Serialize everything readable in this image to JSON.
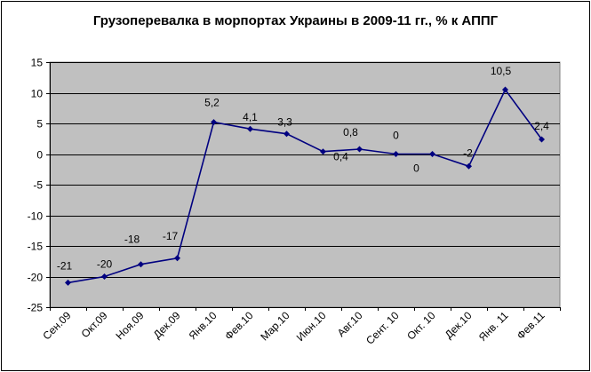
{
  "chart_data": {
    "type": "line",
    "title": "Грузоперевалка в морпортах Украины в 2009-11 гг., % к АППГ",
    "xlabel": "",
    "ylabel": "",
    "categories": [
      "Сен.09",
      "Окт.09",
      "Ноя.09",
      "Дек.09",
      "Янв.10",
      "Фев.10",
      "Мар.10",
      "Июн.10",
      "Авг.10",
      "Сент. 10",
      "Окт. 10",
      "Дек.10",
      "Янв. 11",
      "Фев.11"
    ],
    "series": [
      {
        "values": [
          -21,
          -20,
          -18,
          -17,
          5.2,
          4.1,
          3.3,
          0.4,
          0.8,
          0,
          0,
          -2,
          10.5,
          2.4
        ],
        "labels": [
          "-21",
          "-20",
          "-18",
          "-17",
          "5,2",
          "4,1",
          "3,3",
          "0,4",
          "0,8",
          "0",
          "0",
          "-2",
          "10,5",
          "2,4"
        ],
        "color": "#000080"
      }
    ],
    "ylim": [
      -25,
      15
    ],
    "yticks": [
      -25,
      -20,
      -15,
      -10,
      -5,
      0,
      5,
      10,
      15
    ],
    "grid": true,
    "legend": "none",
    "plot_background": "#c0c0c0",
    "grid_color": "#000000"
  }
}
